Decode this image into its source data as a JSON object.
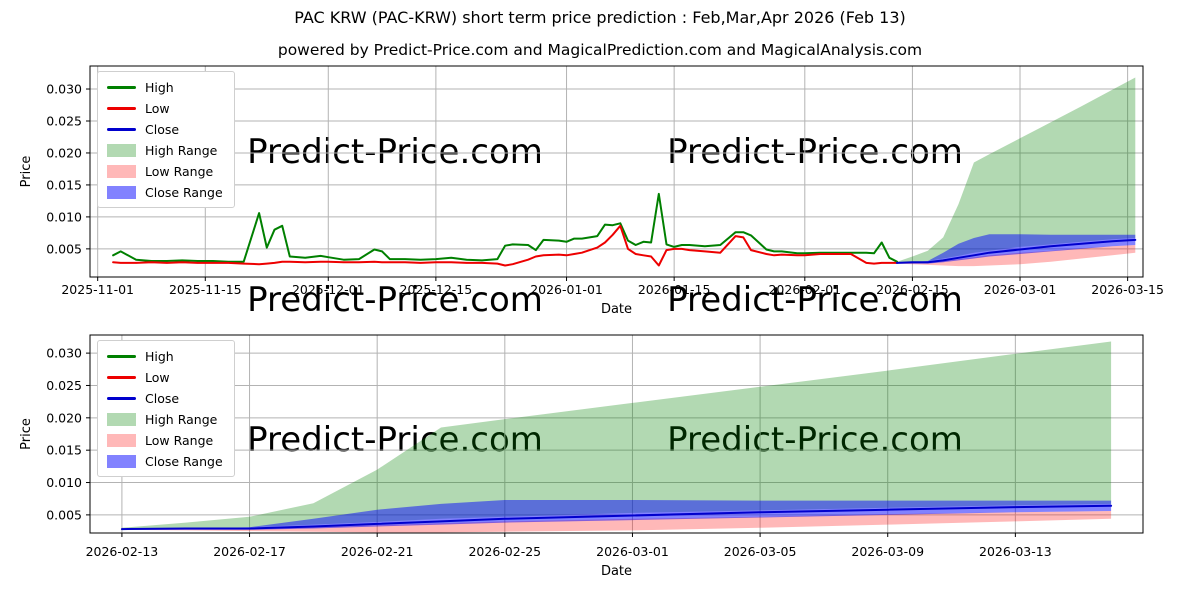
{
  "title": "PAC KRW (PAC-KRW) short term price prediction : Feb,Mar,Apr 2026 (Feb 13)",
  "subtitle": "powered by Predict-Price.com and MagicalPrediction.com and MagicalAnalysis.com",
  "watermark": {
    "text": "Predict-Price.com",
    "color": "#e8e8e8"
  },
  "colors": {
    "high_line": "#008000",
    "low_line": "#ed0000",
    "close_line": "#0000cd",
    "high_fill": "rgba(0,128,0,0.30)",
    "low_fill": "rgba(255,0,0,0.28)",
    "close_fill": "rgba(0,0,255,0.49)",
    "grid": "#b3b3b3",
    "axis": "#000000",
    "legend_border": "#cfcfcf",
    "legend_bg": "#ffffff"
  },
  "legend": [
    {
      "label": "High",
      "swatch": "line",
      "color_key": "high_line"
    },
    {
      "label": "Low",
      "swatch": "line",
      "color_key": "low_line"
    },
    {
      "label": "Close",
      "swatch": "line",
      "color_key": "close_line"
    },
    {
      "label": "High Range",
      "swatch": "patch",
      "color_key": "high_fill"
    },
    {
      "label": "Low Range",
      "swatch": "patch",
      "color_key": "low_fill"
    },
    {
      "label": "Close Range",
      "swatch": "patch",
      "color_key": "close_fill"
    }
  ],
  "chart_data": {
    "type": "line",
    "history": {
      "dates": [
        "2025-11-03",
        "2025-11-04",
        "2025-11-06",
        "2025-11-08",
        "2025-11-10",
        "2025-11-12",
        "2025-11-14",
        "2025-11-16",
        "2025-11-18",
        "2025-11-20",
        "2025-11-22",
        "2025-11-23",
        "2025-11-24",
        "2025-11-25",
        "2025-11-26",
        "2025-11-28",
        "2025-11-30",
        "2025-12-01",
        "2025-12-03",
        "2025-12-05",
        "2025-12-07",
        "2025-12-08",
        "2025-12-09",
        "2025-12-11",
        "2025-12-13",
        "2025-12-15",
        "2025-12-17",
        "2025-12-19",
        "2025-12-21",
        "2025-12-23",
        "2025-12-24",
        "2025-12-25",
        "2025-12-27",
        "2025-12-28",
        "2025-12-29",
        "2025-12-31",
        "2026-01-01",
        "2026-01-02",
        "2026-01-03",
        "2026-01-05",
        "2026-01-06",
        "2026-01-07",
        "2026-01-08",
        "2026-01-09",
        "2026-01-10",
        "2026-01-11",
        "2026-01-12",
        "2026-01-13",
        "2026-01-14",
        "2026-01-15",
        "2026-01-16",
        "2026-01-17",
        "2026-01-19",
        "2026-01-21",
        "2026-01-23",
        "2026-01-24",
        "2026-01-25",
        "2026-01-27",
        "2026-01-28",
        "2026-01-29",
        "2026-01-31",
        "2026-02-01",
        "2026-02-03",
        "2026-02-05",
        "2026-02-07",
        "2026-02-09",
        "2026-02-10",
        "2026-02-11",
        "2026-02-12",
        "2026-02-13"
      ],
      "high": [
        0.004,
        0.0046,
        0.0033,
        0.0031,
        0.0031,
        0.0032,
        0.0031,
        0.0031,
        0.003,
        0.003,
        0.0106,
        0.0052,
        0.008,
        0.0086,
        0.0038,
        0.0036,
        0.0039,
        0.0037,
        0.0033,
        0.0034,
        0.0049,
        0.0046,
        0.0034,
        0.0034,
        0.0033,
        0.0034,
        0.0036,
        0.0033,
        0.0032,
        0.0034,
        0.0055,
        0.0057,
        0.0056,
        0.0048,
        0.0064,
        0.0063,
        0.0061,
        0.0066,
        0.0066,
        0.007,
        0.0088,
        0.0087,
        0.009,
        0.0063,
        0.0056,
        0.0061,
        0.006,
        0.0136,
        0.0057,
        0.0053,
        0.0056,
        0.0056,
        0.0054,
        0.0056,
        0.0076,
        0.0076,
        0.0071,
        0.0049,
        0.0046,
        0.0046,
        0.0043,
        0.0043,
        0.0044,
        0.0044,
        0.0044,
        0.0044,
        0.0043,
        0.006,
        0.0036,
        0.003
      ],
      "low": [
        0.0029,
        0.0028,
        0.0028,
        0.0029,
        0.0028,
        0.0029,
        0.0028,
        0.0028,
        0.0028,
        0.0027,
        0.0026,
        0.0027,
        0.0028,
        0.003,
        0.003,
        0.0029,
        0.003,
        0.003,
        0.0029,
        0.0029,
        0.003,
        0.0029,
        0.0029,
        0.0029,
        0.0028,
        0.0029,
        0.0029,
        0.0028,
        0.0028,
        0.0027,
        0.0024,
        0.0026,
        0.0033,
        0.0038,
        0.004,
        0.0041,
        0.004,
        0.0042,
        0.0044,
        0.0052,
        0.006,
        0.0072,
        0.0086,
        0.005,
        0.0042,
        0.004,
        0.0038,
        0.0024,
        0.0048,
        0.005,
        0.005,
        0.0048,
        0.0046,
        0.0044,
        0.007,
        0.0068,
        0.0048,
        0.0042,
        0.004,
        0.0041,
        0.004,
        0.004,
        0.0042,
        0.0042,
        0.0042,
        0.0028,
        0.0027,
        0.0028,
        0.0028,
        0.0028
      ]
    },
    "prediction": {
      "dates": [
        "2026-02-13",
        "2026-02-15",
        "2026-02-17",
        "2026-02-19",
        "2026-02-21",
        "2026-02-23",
        "2026-02-25",
        "2026-03-01",
        "2026-03-05",
        "2026-03-09",
        "2026-03-13",
        "2026-03-16"
      ],
      "close": [
        0.0028,
        0.0029,
        0.0029,
        0.0032,
        0.0036,
        0.004,
        0.0044,
        0.0049,
        0.0054,
        0.0058,
        0.0062,
        0.0064
      ],
      "high_range": {
        "upper": [
          0.003,
          0.0038,
          0.0047,
          0.0068,
          0.012,
          0.0185,
          0.0198,
          0.0223,
          0.0248,
          0.0273,
          0.0299,
          0.0318
        ],
        "lower": [
          0.0028,
          0.0029,
          0.0031,
          0.0035,
          0.0039,
          0.0044,
          0.0047,
          0.0053,
          0.0057,
          0.0061,
          0.0065,
          0.0067
        ]
      },
      "low_range": {
        "upper": [
          0.0028,
          0.0028,
          0.0028,
          0.0031,
          0.0034,
          0.0037,
          0.004,
          0.0044,
          0.0047,
          0.0051,
          0.0054,
          0.0056
        ],
        "lower": [
          0.0027,
          0.0026,
          0.0025,
          0.0024,
          0.0023,
          0.0023,
          0.0024,
          0.0026,
          0.003,
          0.0035,
          0.004,
          0.0044
        ]
      },
      "close_range": {
        "upper": [
          0.0029,
          0.0029,
          0.0031,
          0.0044,
          0.0058,
          0.0067,
          0.0073,
          0.0073,
          0.0072,
          0.0072,
          0.0072,
          0.0072
        ],
        "lower": [
          0.0027,
          0.0027,
          0.0027,
          0.0029,
          0.0032,
          0.0035,
          0.0038,
          0.0042,
          0.0046,
          0.005,
          0.0054,
          0.0056
        ]
      }
    },
    "charts": [
      {
        "name": "history-and-prediction",
        "xlabel": "Date",
        "ylabel": "Price",
        "x_domain": [
          "2025-10-31",
          "2026-03-17"
        ],
        "y_domain": [
          0.0006,
          0.0336
        ],
        "x_ticks": [
          "2025-11-01",
          "2025-11-15",
          "2025-12-01",
          "2025-12-15",
          "2026-01-01",
          "2026-01-15",
          "2026-02-01",
          "2026-02-15",
          "2026-03-01",
          "2026-03-15"
        ],
        "y_ticks": [
          "0.005",
          "0.010",
          "0.015",
          "0.020",
          "0.025",
          "0.030"
        ],
        "grid": true,
        "legend_position": "upper left"
      },
      {
        "name": "prediction-zoom",
        "xlabel": "Date",
        "ylabel": "Price",
        "x_domain": [
          "2026-02-12",
          "2026-03-17"
        ],
        "y_domain": [
          0.0022,
          0.0328
        ],
        "x_ticks": [
          "2026-02-13",
          "2026-02-17",
          "2026-02-21",
          "2026-02-25",
          "2026-03-01",
          "2026-03-05",
          "2026-03-09",
          "2026-03-13"
        ],
        "y_ticks": [
          "0.005",
          "0.010",
          "0.015",
          "0.020",
          "0.025",
          "0.030"
        ],
        "grid": true,
        "legend_position": "upper left"
      }
    ]
  }
}
